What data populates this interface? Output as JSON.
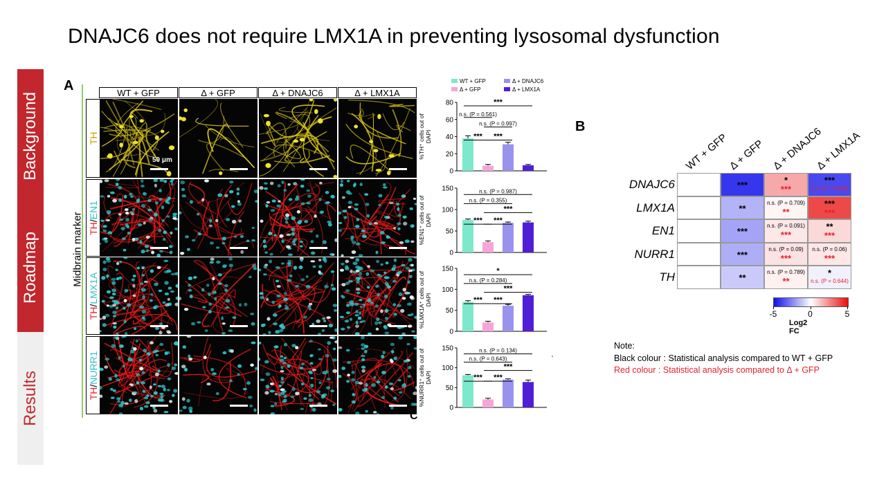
{
  "slide": {
    "title": "DNAJC6 does not require LMX1A in preventing lysosomal dysfunction"
  },
  "side_tabs": [
    "Background",
    "Roadmap",
    "Results"
  ],
  "panel_a": {
    "letter": "A",
    "side_label": "Midbrain marker",
    "columns": [
      "WT + GFP",
      "Δ + GFP",
      "Δ + DNAJC6",
      "Δ + LMX1A"
    ],
    "rows": [
      {
        "label": [
          {
            "text": "TH",
            "color": "#c9a400"
          }
        ]
      },
      {
        "label": [
          {
            "text": "TH",
            "color": "#e8202a"
          },
          {
            "text": "/",
            "color": "#000000"
          },
          {
            "text": "EN1",
            "color": "#2fc2c8"
          }
        ]
      },
      {
        "label": [
          {
            "text": "TH",
            "color": "#e8202a"
          },
          {
            "text": "/",
            "color": "#000000"
          },
          {
            "text": "LMX1A",
            "color": "#2fc2c8"
          }
        ]
      },
      {
        "label": [
          {
            "text": "TH",
            "color": "#e8202a"
          },
          {
            "text": "/",
            "color": "#000000"
          },
          {
            "text": "NURR1",
            "color": "#2fc2c8"
          }
        ]
      }
    ],
    "scale_label": "50 μm",
    "stray_letter": "C",
    "stray_dot": "."
  },
  "chart_data": [
    {
      "type": "bar",
      "categories": [
        "WT + GFP",
        "Δ + GFP",
        "Δ + DNAJC6",
        "Δ + LMX1A"
      ],
      "values": [
        38,
        6,
        31,
        6.5
      ],
      "errors": [
        3,
        1.5,
        2.5,
        1
      ],
      "ylabel": "%TH⁺ cells out of DAPI",
      "ylim": [
        0,
        80
      ],
      "yticks": [
        0,
        20,
        40,
        60,
        80
      ],
      "legend": [
        "WT + GFP",
        "Δ + DNAJC6",
        "Δ + GFP",
        "Δ + LMX1A"
      ],
      "colors": [
        "#7de8cc",
        "#f5a5d8",
        "#9a93ee",
        "#4f1ed6"
      ],
      "annotations": [
        "***",
        "n.s. (P = 0.561)",
        "n.s. (P = 0.997)",
        "***",
        "***"
      ]
    },
    {
      "type": "bar",
      "categories": [
        "WT + GFP",
        "Δ + GFP",
        "Δ + DNAJC6",
        "Δ + LMX1A"
      ],
      "values": [
        76,
        24,
        69,
        70
      ],
      "errors": [
        2,
        3,
        2,
        3
      ],
      "ylabel": "%EN1⁺ cells out of DAPI",
      "ylim": [
        0,
        150
      ],
      "yticks": [
        0,
        50,
        100,
        150
      ],
      "annotations": [
        "n.s. (P = 0.987)",
        "n.s. (P = 0.355)",
        "***",
        "***",
        "***"
      ]
    },
    {
      "type": "bar",
      "categories": [
        "WT + GFP",
        "Δ + GFP",
        "Δ + DNAJC6",
        "Δ + LMX1A"
      ],
      "values": [
        70,
        21,
        61,
        86
      ],
      "errors": [
        3,
        3,
        3,
        2
      ],
      "ylabel": "%LMX1A⁺ cells out of DAPI",
      "ylim": [
        0,
        150
      ],
      "yticks": [
        0,
        50,
        100,
        150
      ],
      "annotations": [
        "*",
        "n.s. (P = 0.284)",
        "***",
        "***",
        "***"
      ]
    },
    {
      "type": "bar",
      "categories": [
        "WT + GFP",
        "Δ + GFP",
        "Δ + DNAJC6",
        "Δ + LMX1A"
      ],
      "values": [
        81,
        20,
        70,
        64
      ],
      "errors": [
        2,
        3,
        2,
        5
      ],
      "ylabel": "%NURR1⁺ cells out of DAPI",
      "ylim": [
        0,
        150
      ],
      "yticks": [
        0,
        50,
        100,
        150
      ],
      "annotations": [
        "n.s. (P = 0.134)",
        "n.s. (P = 0.643)",
        "***",
        "***",
        "***"
      ]
    },
    {
      "type": "heatmap",
      "columns": [
        "WT + GFP",
        "Δ + GFP",
        "Δ + DNAJC6",
        "Δ + LMX1A"
      ],
      "rows": [
        "DNAJC6",
        "LMX1A",
        "EN1",
        "NURR1",
        "TH"
      ],
      "values": [
        [
          0,
          -4.2,
          1.8,
          -3.8
        ],
        [
          0,
          -1.6,
          0.2,
          3.8
        ],
        [
          0,
          -1.9,
          0.5,
          0.8
        ],
        [
          0,
          -1.7,
          0.6,
          0.5
        ],
        [
          0,
          -1.1,
          0.3,
          -0.3
        ]
      ],
      "black_labels": [
        [
          "",
          "***",
          "*",
          "***"
        ],
        [
          "",
          "**",
          "n.s. (P = 0.709)",
          "***"
        ],
        [
          "",
          "***",
          "n.s. (P = 0.091)",
          "**"
        ],
        [
          "",
          "***",
          "n.s. (P = 0.09)",
          "n.s. (P = 0.06)"
        ],
        [
          "",
          "**",
          "n.s. (P = 0.789)",
          "*"
        ]
      ],
      "red_labels": [
        [
          "",
          "",
          "***",
          "n.s. (P = 0.803)"
        ],
        [
          "",
          "",
          "**",
          "***"
        ],
        [
          "",
          "",
          "***",
          "***"
        ],
        [
          "",
          "",
          "***",
          "***"
        ],
        [
          "",
          "",
          "**",
          "n.s. (P = 0.644)"
        ]
      ],
      "colorbar": {
        "min": -5,
        "max": 5,
        "ticks": [
          -5,
          0,
          5
        ],
        "label": "Log2 FC",
        "low_color": "#1010e8",
        "high_color": "#e81010"
      }
    }
  ],
  "panel_b": {
    "letter": "B"
  },
  "note": {
    "title": "Note:",
    "black_line": "Black colour : Statistical analysis compared to WT + GFP",
    "red_line": "Red colour   : Statistical analysis compared to Δ + GFP"
  },
  "colors": {
    "accent_red": "#c1272d",
    "note_red": "#e8202a",
    "title_yellow": "#c9a400",
    "cyan": "#2fc2c8"
  }
}
